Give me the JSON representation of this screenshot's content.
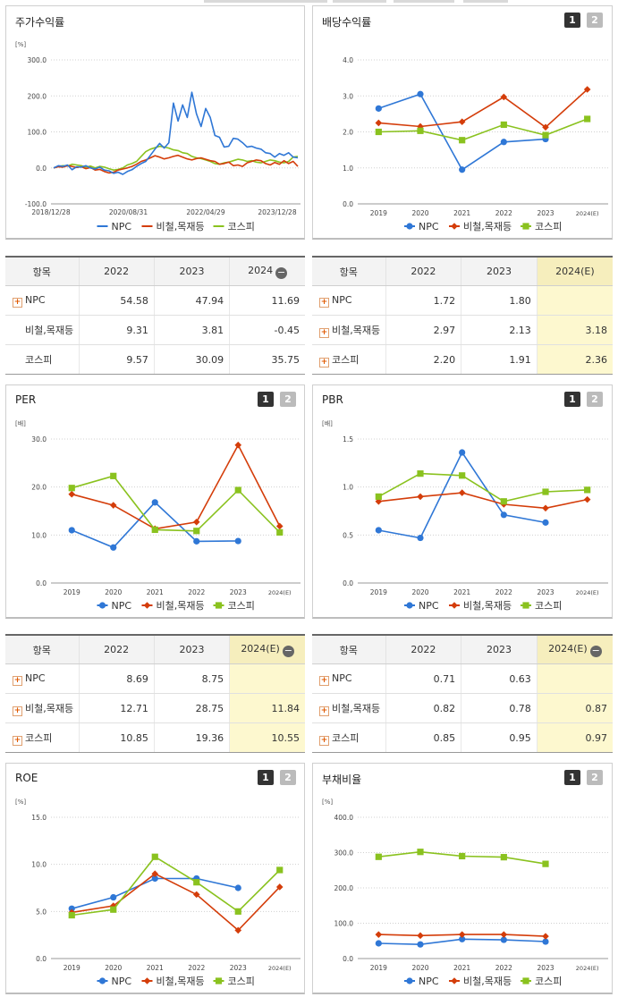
{
  "panels": [
    {
      "id": "stock",
      "title": "주가수익률",
      "unit": "[%]",
      "buttons": [],
      "legend": [
        "NPC",
        "비철,목재등",
        "코스피"
      ]
    },
    {
      "id": "dividend",
      "title": "배당수익률",
      "unit": "",
      "buttons": [
        "1",
        "2"
      ],
      "legend": [
        "NPC",
        "비철,목재등",
        "코스피"
      ]
    },
    {
      "id": "per",
      "title": "PER",
      "unit": "[배]",
      "buttons": [
        "1",
        "2"
      ],
      "legend": [
        "NPC",
        "비철,목재등",
        "코스피"
      ]
    },
    {
      "id": "pbr",
      "title": "PBR",
      "unit": "[배]",
      "buttons": [
        "1",
        "2"
      ],
      "legend": [
        "NPC",
        "비철,목재등",
        "코스피"
      ]
    },
    {
      "id": "roe",
      "title": "ROE",
      "unit": "[%]",
      "buttons": [
        "1",
        "2"
      ],
      "legend": [
        "NPC",
        "비철,목재등",
        "코스피"
      ]
    },
    {
      "id": "debt",
      "title": "부채비율",
      "unit": "[%]",
      "buttons": [
        "1",
        "2"
      ],
      "legend": [
        "NPC",
        "비철,목재등",
        "코스피"
      ]
    }
  ],
  "colors": {
    "npc": "#2f77d6",
    "sector": "#d43d0a",
    "kospi": "#8ac21f"
  },
  "tables": [
    {
      "id": "t-stock",
      "headers": [
        "항목",
        "2022",
        "2023",
        "2024"
      ],
      "collapse_icon": "minus-circle-icon",
      "rows": [
        {
          "label": "NPC",
          "expandable": true,
          "values": [
            "54.58",
            "47.94",
            "11.69"
          ]
        },
        {
          "label": "비철,목재등",
          "expandable": false,
          "values": [
            "9.31",
            "3.81",
            "-0.45"
          ]
        },
        {
          "label": "코스피",
          "expandable": false,
          "values": [
            "9.57",
            "30.09",
            "35.75"
          ]
        }
      ]
    },
    {
      "id": "t-dividend",
      "headers": [
        "항목",
        "2022",
        "2023",
        "2024(E)"
      ],
      "collapse_icon": "",
      "rows": [
        {
          "label": "NPC",
          "expandable": true,
          "values": [
            "1.72",
            "1.80",
            ""
          ]
        },
        {
          "label": "비철,목재등",
          "expandable": true,
          "values": [
            "2.97",
            "2.13",
            "3.18"
          ]
        },
        {
          "label": "코스피",
          "expandable": true,
          "values": [
            "2.20",
            "1.91",
            "2.36"
          ]
        }
      ]
    },
    {
      "id": "t-per",
      "headers": [
        "항목",
        "2022",
        "2023",
        "2024(E)"
      ],
      "collapse_icon": "minus-circle-icon",
      "rows": [
        {
          "label": "NPC",
          "expandable": true,
          "values": [
            "8.69",
            "8.75",
            ""
          ]
        },
        {
          "label": "비철,목재등",
          "expandable": true,
          "values": [
            "12.71",
            "28.75",
            "11.84"
          ]
        },
        {
          "label": "코스피",
          "expandable": true,
          "values": [
            "10.85",
            "19.36",
            "10.55"
          ]
        }
      ]
    },
    {
      "id": "t-pbr",
      "headers": [
        "항목",
        "2022",
        "2023",
        "2024(E)"
      ],
      "collapse_icon": "minus-circle-icon",
      "rows": [
        {
          "label": "NPC",
          "expandable": true,
          "values": [
            "0.71",
            "0.63",
            ""
          ]
        },
        {
          "label": "비철,목재등",
          "expandable": true,
          "values": [
            "0.82",
            "0.78",
            "0.87"
          ]
        },
        {
          "label": "코스피",
          "expandable": true,
          "values": [
            "0.85",
            "0.95",
            "0.97"
          ]
        }
      ]
    }
  ],
  "chart_data": [
    {
      "id": "stock",
      "type": "line",
      "title": "주가수익률",
      "ylabel": "[%]",
      "ylim": [
        -100,
        300
      ],
      "yticks": [
        "300.0",
        "200.0",
        "100.0",
        "0.0",
        "-100.0"
      ],
      "xticks": [
        "2018/12/28",
        "2020/08/31",
        "2022/04/29",
        "2023/12/28"
      ],
      "series": [
        {
          "name": "NPC",
          "values": [
            0,
            6,
            4,
            8,
            -5,
            3,
            2,
            6,
            0,
            -3,
            2,
            -6,
            -8,
            -15,
            -12,
            -18,
            -10,
            -5,
            4,
            12,
            18,
            35,
            52,
            68,
            55,
            70,
            180,
            130,
            175,
            140,
            210,
            150,
            115,
            165,
            140,
            90,
            85,
            58,
            60,
            82,
            80,
            70,
            58,
            60,
            55,
            52,
            42,
            40,
            30,
            40,
            35,
            42,
            30,
            28
          ]
        },
        {
          "name": "비철,목재등",
          "values": [
            0,
            3,
            2,
            6,
            4,
            1,
            3,
            -2,
            1,
            -6,
            -4,
            -10,
            -14,
            -12,
            -6,
            -3,
            0,
            4,
            10,
            18,
            22,
            28,
            34,
            30,
            25,
            28,
            32,
            35,
            30,
            25,
            22,
            26,
            28,
            24,
            20,
            18,
            10,
            12,
            16,
            6,
            8,
            4,
            14,
            18,
            22,
            20,
            12,
            8,
            15,
            10,
            20,
            12,
            18,
            4
          ]
        },
        {
          "name": "코스피",
          "values": [
            0,
            4,
            6,
            5,
            10,
            8,
            6,
            2,
            5,
            0,
            4,
            2,
            -2,
            -6,
            -4,
            0,
            8,
            12,
            18,
            32,
            45,
            52,
            56,
            60,
            58,
            55,
            50,
            48,
            42,
            40,
            32,
            28,
            26,
            22,
            18,
            12,
            10,
            14,
            16,
            20,
            24,
            22,
            18,
            20,
            16,
            14,
            18,
            22,
            20,
            16,
            14,
            18,
            30,
            32
          ]
        }
      ]
    },
    {
      "id": "dividend",
      "type": "line",
      "title": "배당수익률",
      "ylim": [
        0,
        4
      ],
      "yticks": [
        "4.0",
        "3.0",
        "2.0",
        "1.0",
        "0.0"
      ],
      "categories": [
        "2019",
        "2020",
        "2021",
        "2022",
        "2023",
        "2024(E)"
      ],
      "series": [
        {
          "name": "NPC",
          "values": [
            2.65,
            3.05,
            0.95,
            1.72,
            1.8,
            null
          ]
        },
        {
          "name": "비철,목재등",
          "values": [
            2.25,
            2.15,
            2.28,
            2.97,
            2.13,
            3.18
          ]
        },
        {
          "name": "코스피",
          "values": [
            2.0,
            2.03,
            1.77,
            2.2,
            1.91,
            2.36
          ]
        }
      ]
    },
    {
      "id": "per",
      "type": "line",
      "title": "PER",
      "ylabel": "[배]",
      "ylim": [
        0,
        30
      ],
      "yticks": [
        "30.0",
        "20.0",
        "10.0",
        "0.0"
      ],
      "categories": [
        "2019",
        "2020",
        "2021",
        "2022",
        "2023",
        "2024(E)"
      ],
      "series": [
        {
          "name": "NPC",
          "values": [
            11.0,
            7.4,
            16.8,
            8.69,
            8.75,
            null
          ]
        },
        {
          "name": "비철,목재등",
          "values": [
            18.5,
            16.2,
            11.3,
            12.71,
            28.75,
            11.84
          ]
        },
        {
          "name": "코스피",
          "values": [
            19.8,
            22.3,
            11.1,
            10.85,
            19.36,
            10.55
          ]
        }
      ]
    },
    {
      "id": "pbr",
      "type": "line",
      "title": "PBR",
      "ylabel": "[배]",
      "ylim": [
        0,
        1.5
      ],
      "yticks": [
        "1.5",
        "1.0",
        "0.5",
        "0.0"
      ],
      "categories": [
        "2019",
        "2020",
        "2021",
        "2022",
        "2023",
        "2024(E)"
      ],
      "series": [
        {
          "name": "NPC",
          "values": [
            0.55,
            0.47,
            1.36,
            0.71,
            0.63,
            null
          ]
        },
        {
          "name": "비철,목재등",
          "values": [
            0.85,
            0.9,
            0.94,
            0.82,
            0.78,
            0.87
          ]
        },
        {
          "name": "코스피",
          "values": [
            0.9,
            1.14,
            1.12,
            0.85,
            0.95,
            0.97
          ]
        }
      ]
    },
    {
      "id": "roe",
      "type": "line",
      "title": "ROE",
      "ylabel": "[%]",
      "ylim": [
        0,
        15
      ],
      "yticks": [
        "15.0",
        "10.0",
        "5.0",
        "0.0"
      ],
      "categories": [
        "2019",
        "2020",
        "2021",
        "2022",
        "2023",
        "2024(E)"
      ],
      "series": [
        {
          "name": "NPC",
          "values": [
            5.3,
            6.5,
            8.5,
            8.5,
            7.5,
            null
          ]
        },
        {
          "name": "비철,목재등",
          "values": [
            4.9,
            5.6,
            9.0,
            6.8,
            3.0,
            7.6
          ]
        },
        {
          "name": "코스피",
          "values": [
            4.6,
            5.2,
            10.8,
            8.1,
            5.0,
            9.4
          ]
        }
      ]
    },
    {
      "id": "debt",
      "type": "line",
      "title": "부채비율",
      "ylabel": "[%]",
      "ylim": [
        0,
        400
      ],
      "yticks": [
        "400.0",
        "300.0",
        "200.0",
        "100.0",
        "0.0"
      ],
      "categories": [
        "2019",
        "2020",
        "2021",
        "2022",
        "2023",
        "2024(E)"
      ],
      "series": [
        {
          "name": "NPC",
          "values": [
            43,
            40,
            55,
            53,
            48,
            null
          ]
        },
        {
          "name": "비철,목재등",
          "values": [
            68,
            65,
            68,
            68,
            63,
            null
          ]
        },
        {
          "name": "코스피",
          "values": [
            288,
            302,
            290,
            287,
            268,
            null
          ]
        }
      ]
    }
  ]
}
